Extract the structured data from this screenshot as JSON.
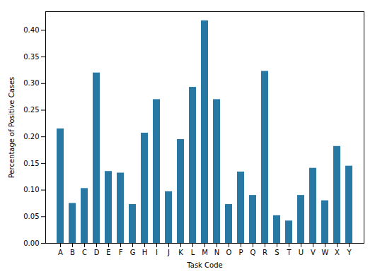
{
  "chart_data": {
    "type": "bar",
    "categories": [
      "A",
      "B",
      "C",
      "D",
      "E",
      "F",
      "G",
      "H",
      "I",
      "J",
      "K",
      "L",
      "M",
      "N",
      "O",
      "P",
      "Q",
      "R",
      "S",
      "T",
      "U",
      "V",
      "W",
      "X",
      "Y"
    ],
    "values": [
      0.215,
      0.075,
      0.103,
      0.32,
      0.135,
      0.132,
      0.073,
      0.207,
      0.27,
      0.097,
      0.195,
      0.293,
      0.418,
      0.27,
      0.073,
      0.134,
      0.09,
      0.323,
      0.052,
      0.042,
      0.09,
      0.141,
      0.08,
      0.182,
      0.145
    ],
    "color": "#2878a4",
    "xlabel": "Task Code",
    "ylabel": "Percentage of Positive Cases",
    "ylim": [
      0.0,
      0.435
    ],
    "yticks": [
      {
        "value": 0,
        "label": "0.00"
      },
      0.05,
      {
        "value": 0.1,
        "label": "0.10"
      },
      0.15,
      {
        "value": 0.2,
        "label": "0.20"
      },
      0.25,
      {
        "value": 0.3,
        "label": "0.30"
      },
      0.35,
      {
        "value": 0.4,
        "label": "0.40"
      }
    ],
    "grid": false
  }
}
